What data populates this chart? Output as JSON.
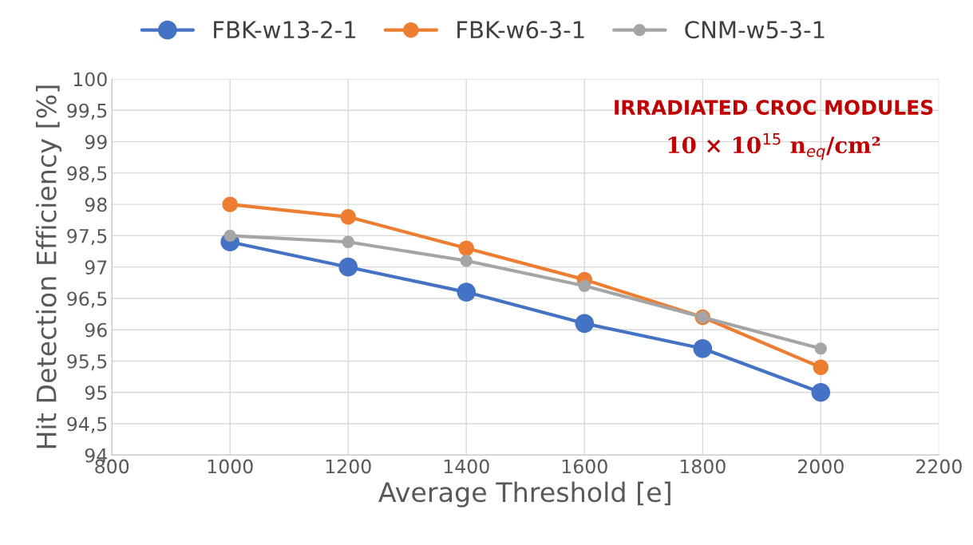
{
  "chart_data": {
    "type": "line",
    "xlabel": "Average Threshold [e]",
    "ylabel": "Hit Detection Efficiency [%]",
    "x": [
      1000,
      1200,
      1400,
      1600,
      1800,
      2000
    ],
    "series": [
      {
        "name": "FBK-w13-2-1",
        "color": "#4472c4",
        "values": [
          97.4,
          97.0,
          96.6,
          96.1,
          95.7,
          95.0
        ]
      },
      {
        "name": "FBK-w6-3-1",
        "color": "#ed7d31",
        "values": [
          98.0,
          97.8,
          97.3,
          96.8,
          96.2,
          95.4
        ]
      },
      {
        "name": "CNM-w5-3-1",
        "color": "#a5a5a5",
        "values": [
          97.5,
          97.4,
          97.1,
          96.7,
          96.2,
          95.7
        ]
      }
    ],
    "xlim": [
      800,
      2200
    ],
    "xticks": [
      800,
      1000,
      1200,
      1400,
      1600,
      1800,
      2000,
      2200
    ],
    "ylim": [
      94,
      100
    ],
    "yticks": [
      94,
      {
        "value": 94.5,
        "label": "94,5"
      },
      95,
      {
        "value": 95.5,
        "label": "95,5"
      },
      96,
      {
        "value": 96.5,
        "label": "96,5"
      },
      97,
      {
        "value": 97.5,
        "label": "97,5"
      },
      98,
      {
        "value": 98.5,
        "label": "98,5"
      },
      99,
      {
        "value": 99.5,
        "label": "99,5"
      },
      100
    ],
    "annotations": [
      "IRRADIATED CROC MODULES",
      "10 × 10$^{15}$ n$_{eq}$/cm²"
    ],
    "grid": true,
    "legend": "top",
    "marker": "circle",
    "line_style": "solid"
  }
}
